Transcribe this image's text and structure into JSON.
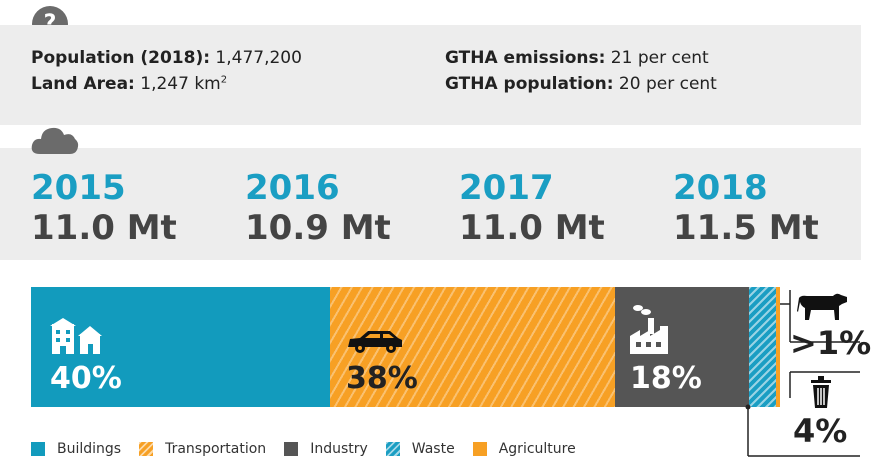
{
  "info": {
    "population_label": "Population (2018):",
    "population_value": " 1,477,200",
    "land_label": "Land Area:",
    "land_value": " 1,247 km",
    "land_unit_sup": "2",
    "gtha_emissions_label": "GTHA emissions:",
    "gtha_emissions_value": " 21 per cent",
    "gtha_population_label": "GTHA population:",
    "gtha_population_value": " 20 per cent"
  },
  "icons": {
    "question": "?",
    "question_icon": "question-icon",
    "cloud_icon": "cloud-icon"
  },
  "emissions": [
    {
      "year": "2015",
      "value": "11.0 Mt"
    },
    {
      "year": "2016",
      "value": "10.9 Mt"
    },
    {
      "year": "2017",
      "value": "11.0 Mt"
    },
    {
      "year": "2018",
      "value": "11.5 Mt"
    }
  ],
  "sectors": {
    "buildings": {
      "label": "Buildings",
      "percent": "40%",
      "share": 40,
      "color": "#129bbd"
    },
    "transportation": {
      "label": "Transportation",
      "percent": "38%",
      "share": 38,
      "color": "#f7a024"
    },
    "industry": {
      "label": "Industry",
      "percent": "18%",
      "share": 18,
      "color": "#555555"
    },
    "waste": {
      "label": "Waste",
      "percent": "4%",
      "share": 4,
      "color": "#1a9ec3"
    },
    "agriculture": {
      "label": "Agriculture",
      "percent": ">1%",
      "share": 1,
      "color": "#f7a024"
    }
  }
}
